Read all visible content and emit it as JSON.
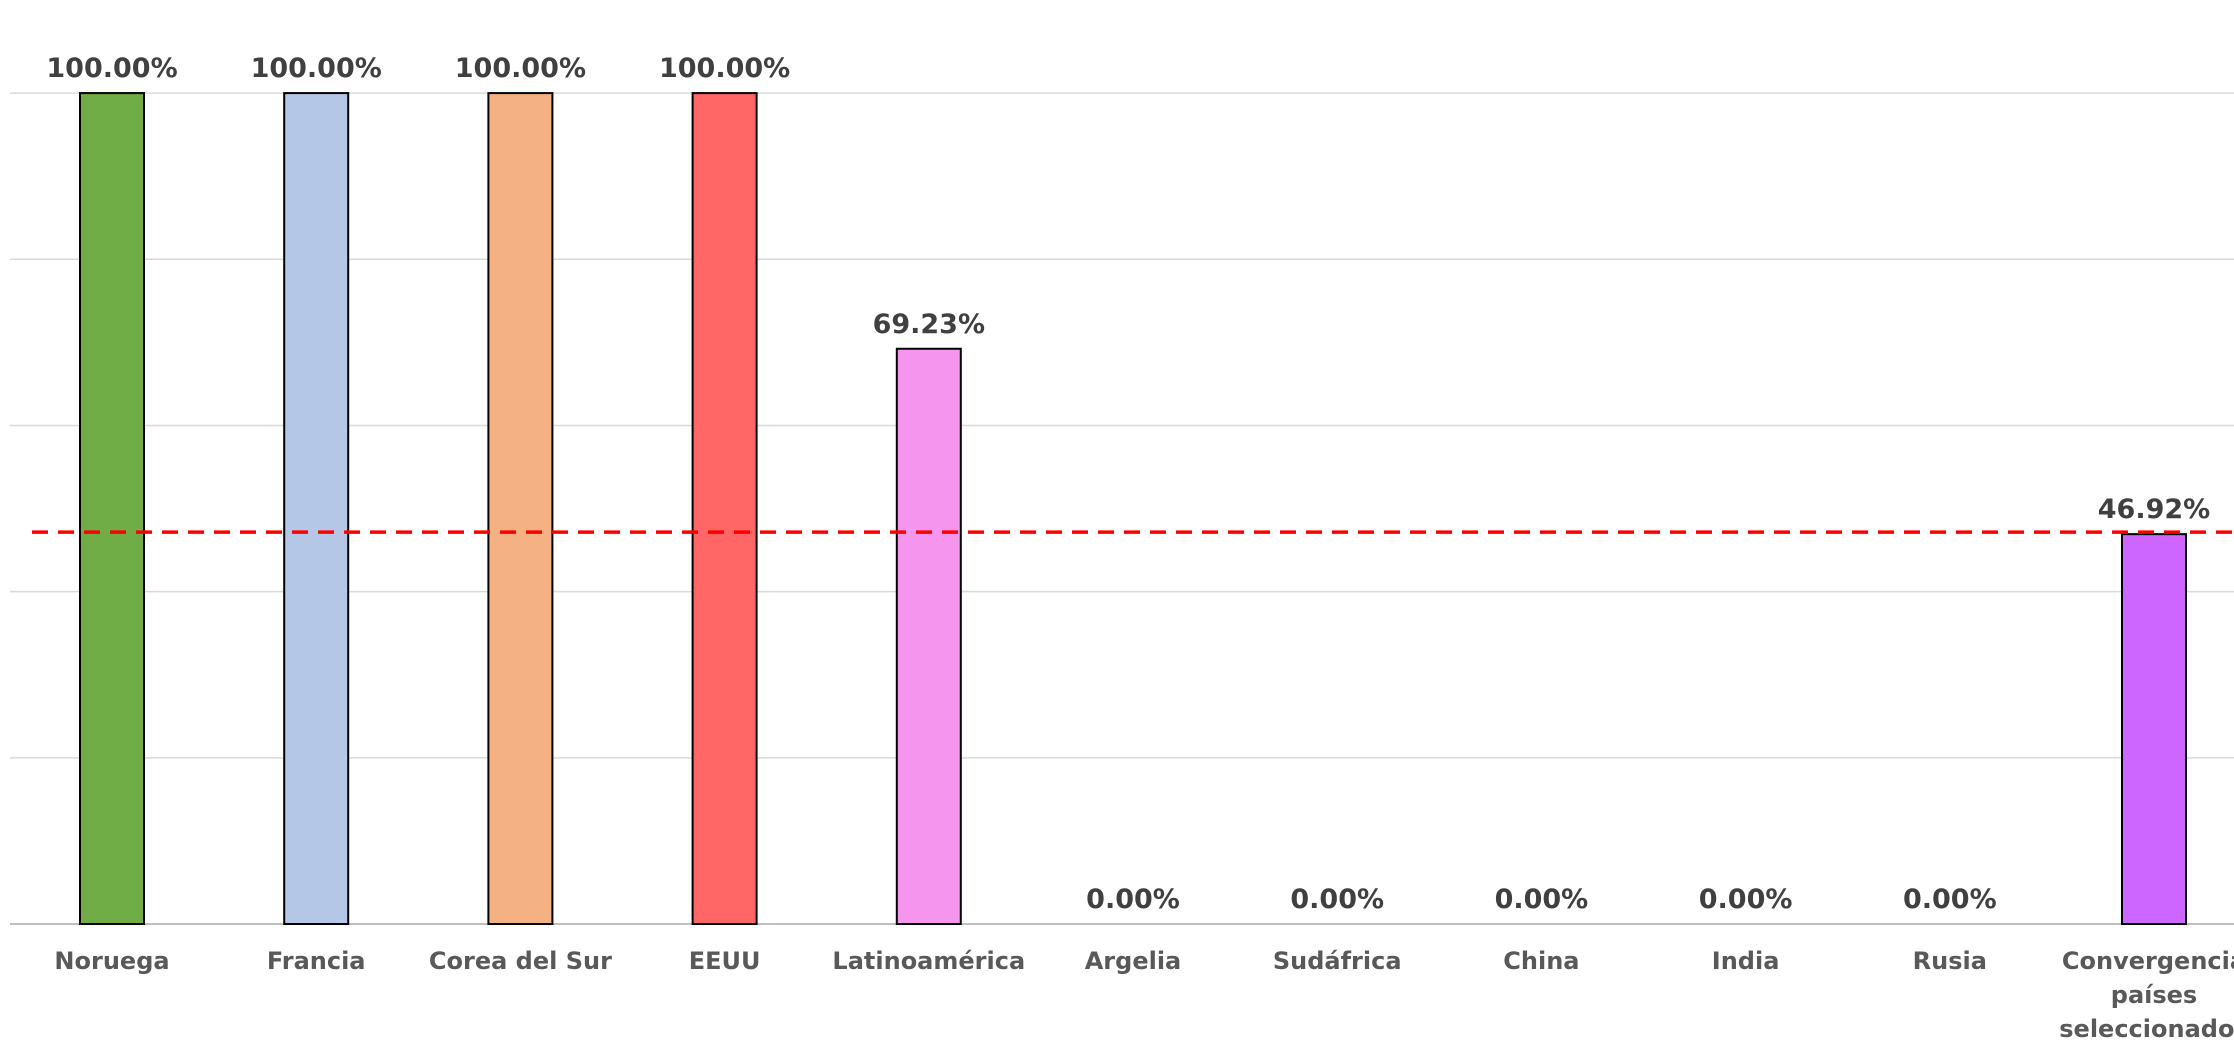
{
  "chart_data": {
    "type": "bar",
    "categories": [
      "Noruega",
      "Francia",
      "Corea del Sur",
      "EEUU",
      "Latinoamérica",
      "Argelia",
      "Sudáfrica",
      "China",
      "India",
      "Rusia",
      "Convergencia países seleccionados"
    ],
    "category_lines": [
      [
        "Noruega"
      ],
      [
        "Francia"
      ],
      [
        "Corea del Sur"
      ],
      [
        "EEUU"
      ],
      [
        "Latinoamérica"
      ],
      [
        "Argelia"
      ],
      [
        "Sudáfrica"
      ],
      [
        "China"
      ],
      [
        "India"
      ],
      [
        "Rusia"
      ],
      [
        "Convergencia",
        "países",
        "seleccionados"
      ]
    ],
    "values": [
      100.0,
      100.0,
      100.0,
      100.0,
      69.23,
      0.0,
      0.0,
      0.0,
      0.0,
      0.0,
      46.92
    ],
    "labels": [
      "100.00%",
      "100.00%",
      "100.00%",
      "100.00%",
      "69.23%",
      "0.00%",
      "0.00%",
      "0.00%",
      "0.00%",
      "0.00%",
      "46.92%"
    ],
    "colors": [
      "#70AD47",
      "#B4C7E7",
      "#F4B183",
      "#FF6666",
      "#F595EE",
      "#999999",
      "#999999",
      "#999999",
      "#999999",
      "#999999",
      "#CC66FF"
    ],
    "reference_line": {
      "value": 46.92,
      "color": "#FF0000",
      "style": "dashed"
    },
    "ylim": [
      0,
      110
    ],
    "grid": true,
    "title": "",
    "xlabel": "",
    "ylabel": ""
  }
}
